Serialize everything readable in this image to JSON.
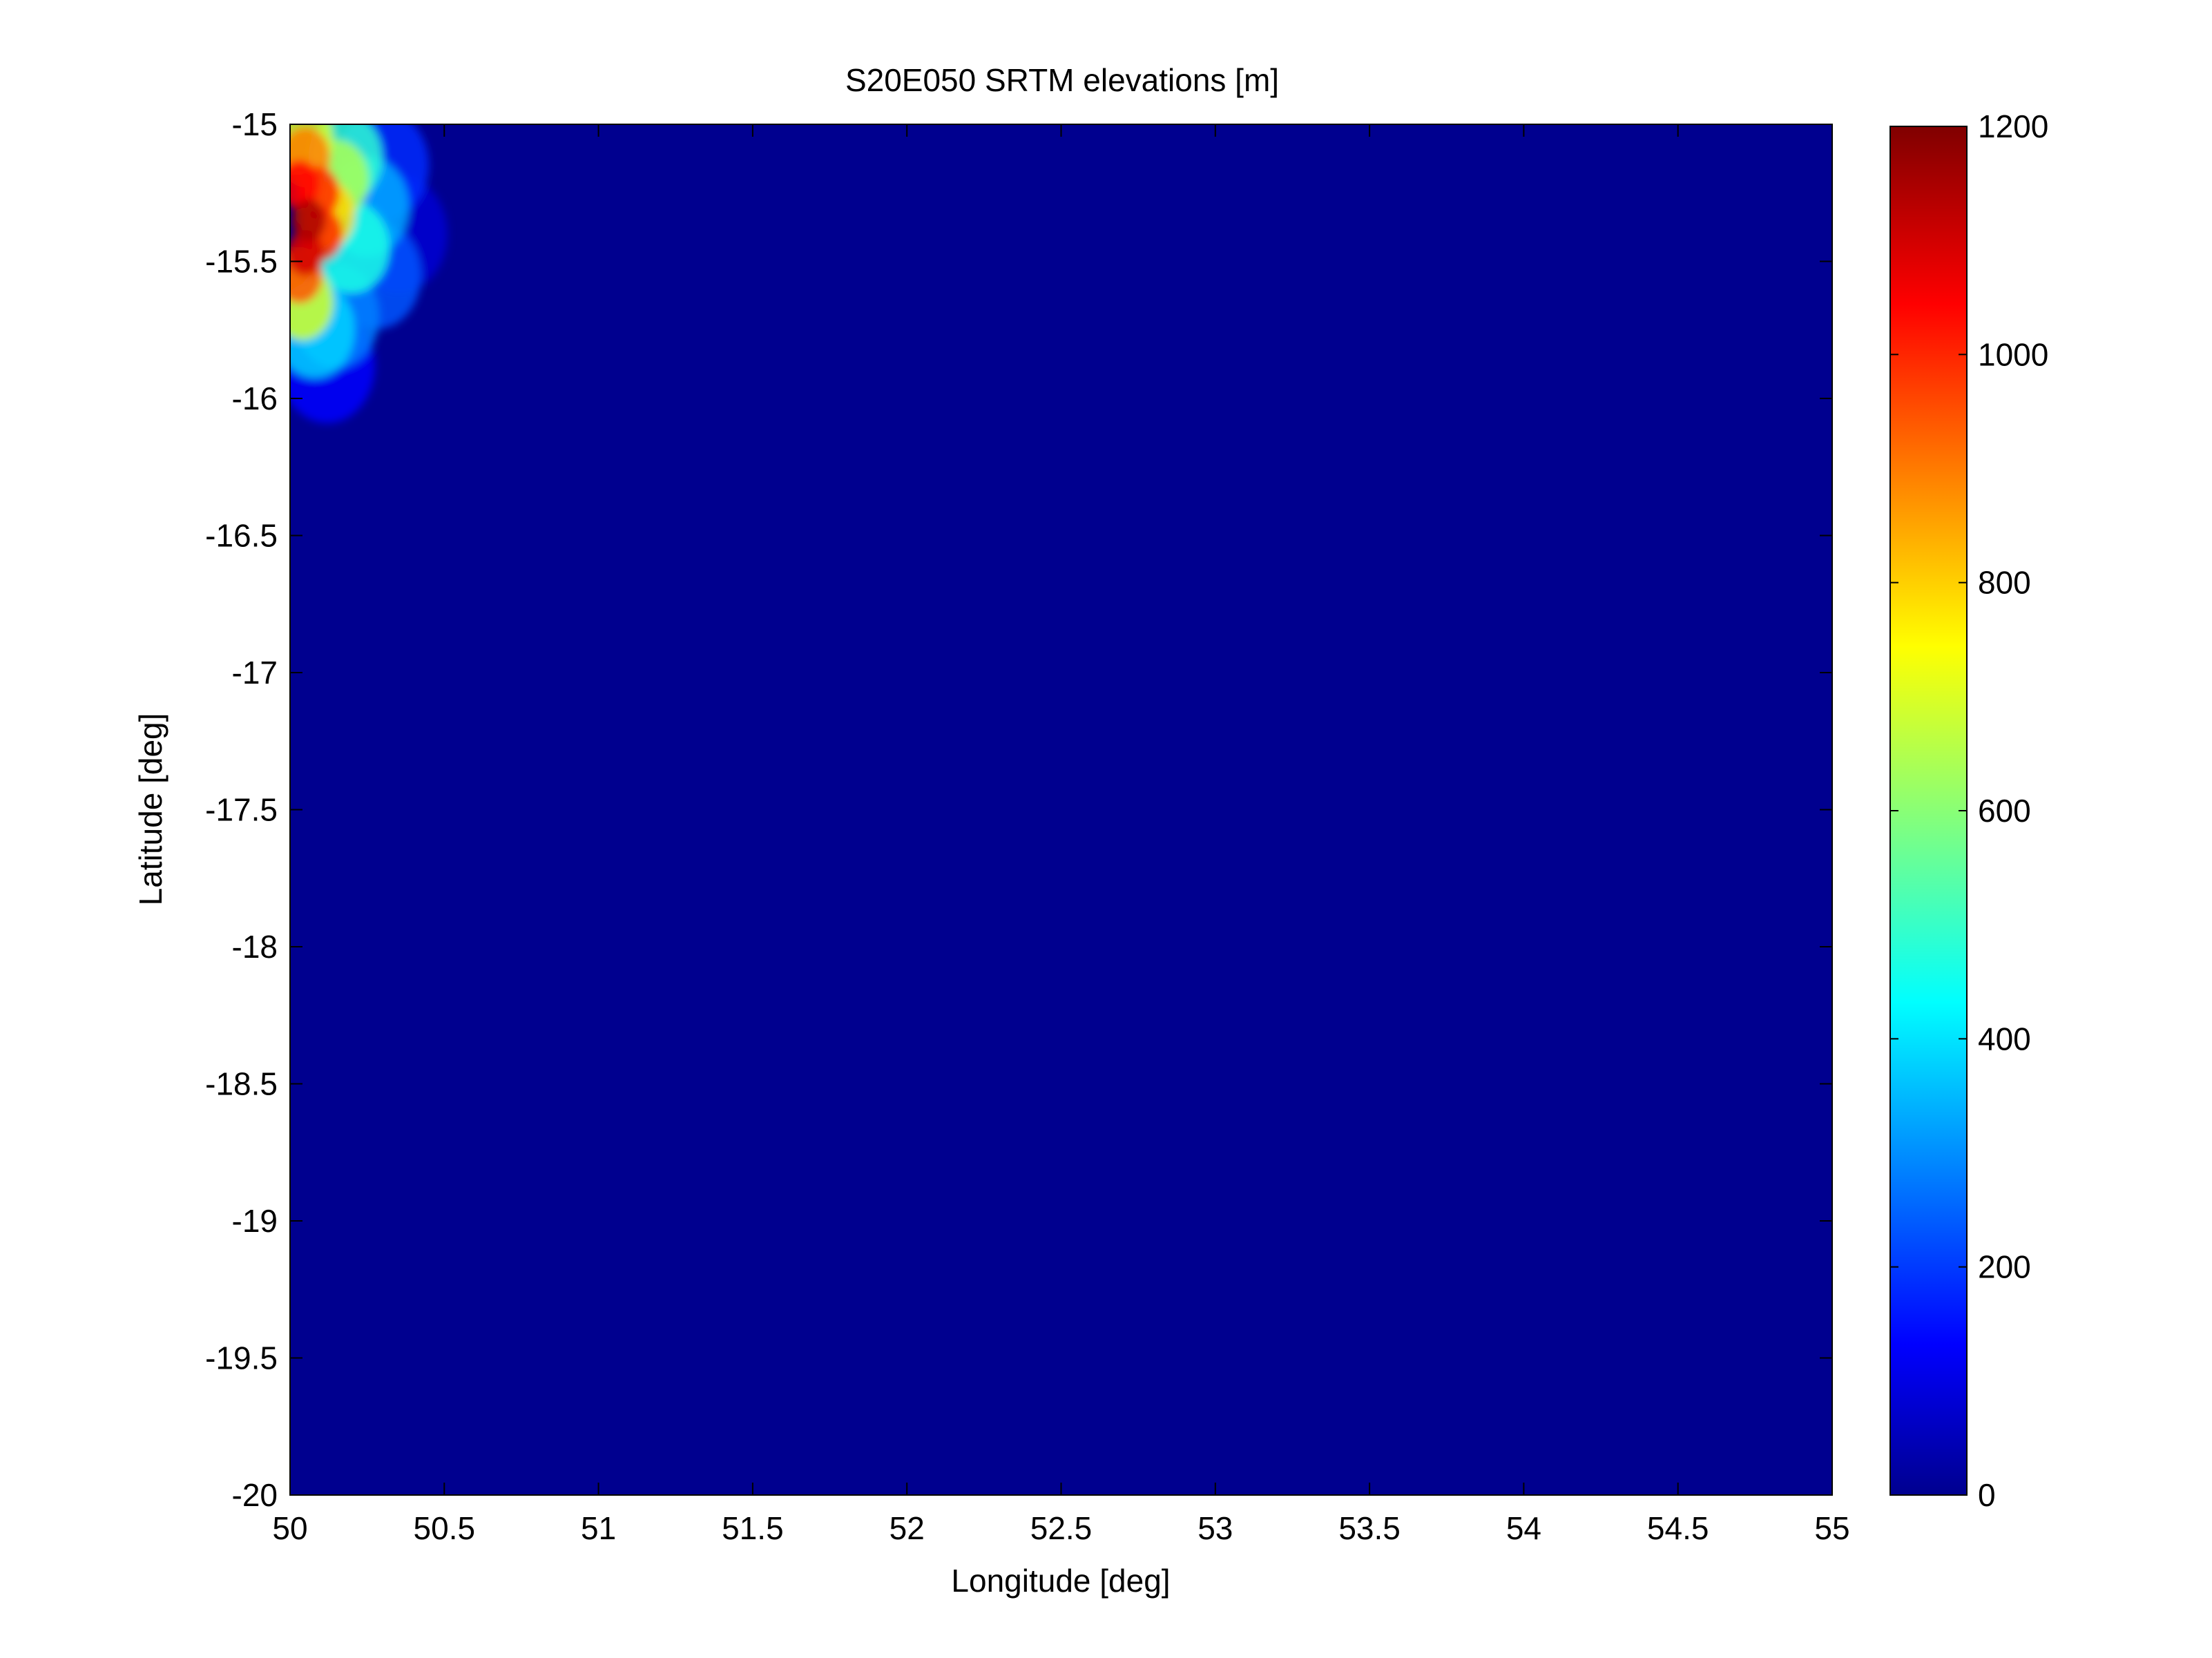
{
  "chart_data": {
    "type": "heatmap",
    "title": "S20E050 SRTM elevations [m]",
    "xlabel": "Longitude [deg]",
    "ylabel": "Latitude [deg]",
    "xlim": [
      50,
      55
    ],
    "ylim": [
      -20,
      -15
    ],
    "x_ticks": [
      "50",
      "50.5",
      "51",
      "51.5",
      "52",
      "52.5",
      "53",
      "53.5",
      "54",
      "54.5",
      "55"
    ],
    "y_ticks": [
      "-15",
      "-15.5",
      "-16",
      "-16.5",
      "-17",
      "-17.5",
      "-18",
      "-18.5",
      "-19",
      "-19.5",
      "-20"
    ],
    "colormap": "jet",
    "color_range": [
      0,
      1200
    ],
    "colorbar_ticks": [
      "0",
      "200",
      "400",
      "600",
      "800",
      "1000",
      "1200"
    ],
    "colorbar_location": "right",
    "background_value": 0,
    "background_color": "#00008f",
    "grid": false,
    "elevated_region": [
      {
        "lon": 50.02,
        "lat": -15.05,
        "elevation": 700
      },
      {
        "lon": 50.05,
        "lat": -15.12,
        "elevation": 900
      },
      {
        "lon": 50.03,
        "lat": -15.22,
        "elevation": 1050
      },
      {
        "lon": 50.09,
        "lat": -15.25,
        "elevation": 1000
      },
      {
        "lon": 50.06,
        "lat": -15.35,
        "elevation": 1150
      },
      {
        "lon": 50.1,
        "lat": -15.4,
        "elevation": 1000
      },
      {
        "lon": 50.05,
        "lat": -15.47,
        "elevation": 1100
      },
      {
        "lon": 50.02,
        "lat": -15.55,
        "elevation": 950
      },
      {
        "lon": 50.12,
        "lat": -15.33,
        "elevation": 800
      },
      {
        "lon": 50.15,
        "lat": -15.2,
        "elevation": 650
      },
      {
        "lon": 50.18,
        "lat": -15.12,
        "elevation": 500
      },
      {
        "lon": 50.2,
        "lat": -15.45,
        "elevation": 480
      },
      {
        "lon": 50.04,
        "lat": -15.65,
        "elevation": 700
      },
      {
        "lon": 50.08,
        "lat": -15.75,
        "elevation": 400
      },
      {
        "lon": 50.25,
        "lat": -15.3,
        "elevation": 350
      },
      {
        "lon": 50.28,
        "lat": -15.55,
        "elevation": 250
      },
      {
        "lon": 50.15,
        "lat": -15.7,
        "elevation": 300
      },
      {
        "lon": 50.3,
        "lat": -15.15,
        "elevation": 200
      },
      {
        "lon": 50.12,
        "lat": -15.88,
        "elevation": 150
      },
      {
        "lon": 50.35,
        "lat": -15.4,
        "elevation": 100
      }
    ]
  }
}
